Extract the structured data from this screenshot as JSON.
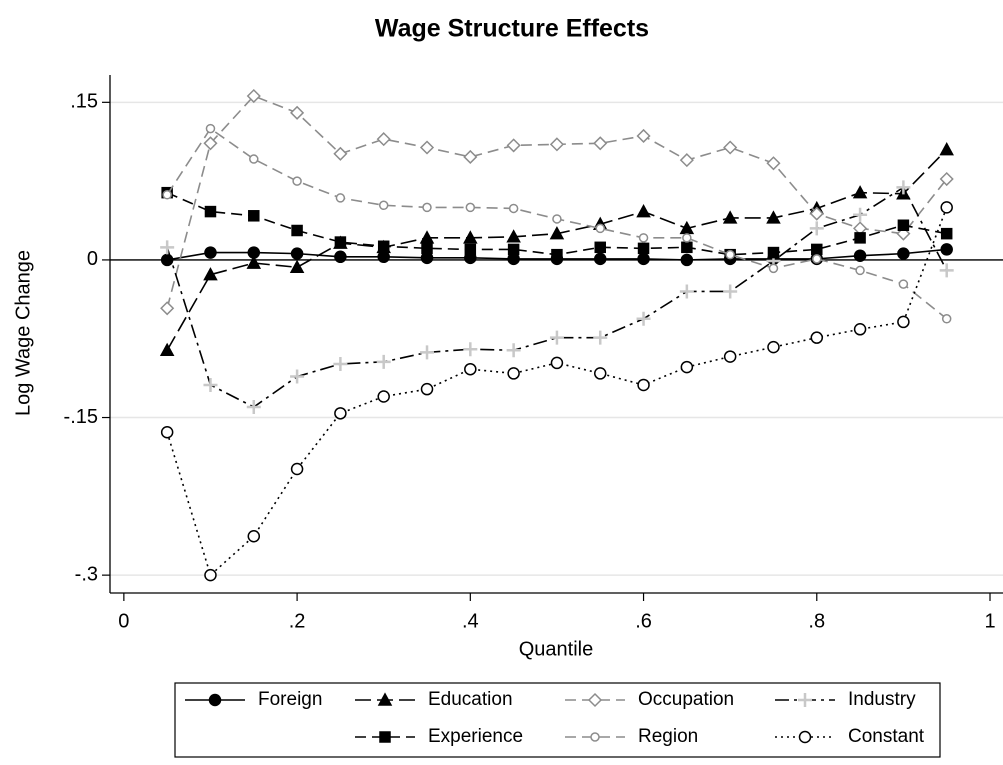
{
  "chart_data": {
    "type": "line",
    "title": "Wage Structure Effects",
    "x_label": "Quantile",
    "y_label": "Log Wage Change",
    "x": [
      0.05,
      0.1,
      0.15,
      0.2,
      0.25,
      0.3,
      0.35,
      0.4,
      0.45,
      0.5,
      0.55,
      0.6,
      0.65,
      0.7,
      0.75,
      0.8,
      0.85,
      0.9,
      0.95
    ],
    "xlim": [
      -0.016,
      1.015
    ],
    "ylim": [
      -0.317,
      0.176
    ],
    "xticks": [
      0,
      {
        "value": 0.2,
        "label": ".2"
      },
      {
        "value": 0.4,
        "label": ".4"
      },
      {
        "value": 0.6,
        "label": ".6"
      },
      {
        "value": 0.8,
        "label": ".8"
      },
      1
    ],
    "yticks": [
      {
        "value": 0.15,
        "label": ".15"
      },
      0,
      {
        "value": -0.15,
        "label": "-.15"
      },
      {
        "value": -0.3,
        "label": "-.3"
      }
    ],
    "grid": true,
    "yline": 0,
    "legend": "bottom",
    "series": [
      {
        "name": "Foreign",
        "color": "#000000",
        "marker_color": "#000000",
        "line_style": "solid",
        "marker": "circle",
        "marker_fill": true,
        "values": [
          0.0,
          0.007,
          0.007,
          0.006,
          0.003,
          0.003,
          0.002,
          0.002,
          0.001,
          0.001,
          0.001,
          0.001,
          0.0,
          0.001,
          0.001,
          0.001,
          0.004,
          0.006,
          0.01
        ]
      },
      {
        "name": "Education",
        "color": "#000000",
        "marker_color": "#000000",
        "line_style": "longdash",
        "marker": "triangle",
        "marker_fill": true,
        "values": [
          -0.086,
          -0.014,
          -0.003,
          -0.007,
          0.016,
          0.012,
          0.021,
          0.021,
          0.022,
          0.025,
          0.034,
          0.046,
          0.03,
          0.04,
          0.04,
          0.049,
          0.064,
          0.063,
          0.105
        ]
      },
      {
        "name": "Occupation",
        "color": "#8c8c8c",
        "marker_color": "#8c8c8c",
        "line_style": "dash",
        "marker": "diamond",
        "marker_fill": false,
        "values": [
          -0.046,
          0.111,
          0.156,
          0.14,
          0.101,
          0.115,
          0.107,
          0.098,
          0.109,
          0.11,
          0.111,
          0.118,
          0.095,
          0.107,
          0.092,
          0.044,
          0.03,
          0.025,
          0.077
        ]
      },
      {
        "name": "Industry",
        "color": "#000000",
        "marker_color": "#c8c8c8",
        "line_style": "dashdot",
        "marker": "plus",
        "marker_fill": false,
        "values": [
          0.012,
          -0.119,
          -0.14,
          -0.111,
          -0.099,
          -0.097,
          -0.088,
          -0.085,
          -0.086,
          -0.074,
          -0.074,
          -0.056,
          -0.03,
          -0.03,
          -0.001,
          0.03,
          0.043,
          0.069,
          -0.01
        ]
      },
      {
        "name": "Experience",
        "color": "#000000",
        "marker_color": "#000000",
        "line_style": "dash",
        "marker": "square",
        "marker_fill": true,
        "values": [
          0.064,
          0.046,
          0.042,
          0.028,
          0.017,
          0.013,
          0.011,
          0.01,
          0.01,
          0.005,
          0.012,
          0.011,
          0.012,
          0.005,
          0.007,
          0.01,
          0.021,
          0.033,
          0.025
        ]
      },
      {
        "name": "Region",
        "color": "#8c8c8c",
        "marker_color": "#8c8c8c",
        "line_style": "dash",
        "marker": "smallcircle",
        "marker_fill": false,
        "values": [
          0.062,
          0.125,
          0.096,
          0.075,
          0.059,
          0.052,
          0.05,
          0.05,
          0.049,
          0.039,
          0.03,
          0.021,
          0.021,
          0.005,
          -0.008,
          0.001,
          -0.01,
          -0.023,
          -0.056
        ]
      },
      {
        "name": "Constant",
        "color": "#000000",
        "marker_color": "#000000",
        "line_style": "dot",
        "marker": "circle",
        "marker_fill": false,
        "values": [
          -0.164,
          -0.3,
          -0.263,
          -0.199,
          -0.146,
          -0.13,
          -0.123,
          -0.104,
          -0.108,
          -0.098,
          -0.108,
          -0.119,
          -0.102,
          -0.092,
          -0.083,
          -0.074,
          -0.066,
          -0.059,
          0.05
        ]
      }
    ]
  }
}
